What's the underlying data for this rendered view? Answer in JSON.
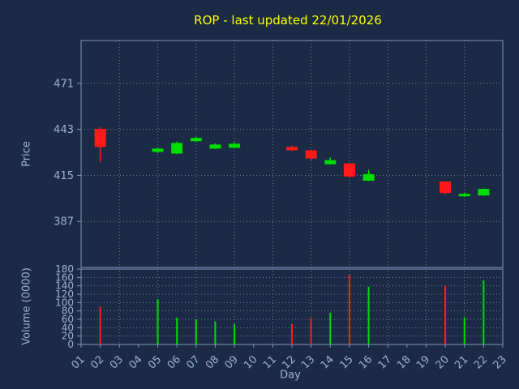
{
  "title": "ROP - last updated 22/01/2026",
  "colors": {
    "background": "#1b2b45",
    "title": "#ffff00",
    "axis_text": "#9fb1d4",
    "axis_line": "#8296bc",
    "grid": "#c0cbe0",
    "up": "#00dd00",
    "down": "#ff1a1a"
  },
  "chart_data": {
    "type": "candlestick_with_volume",
    "title": "ROP - last updated 22/01/2026",
    "xlabel": "Day",
    "price_ylabel": "Price",
    "volume_ylabel": "Volume (0000)",
    "grid": true,
    "x_ticks": [
      "01",
      "02",
      "03",
      "04",
      "05",
      "06",
      "07",
      "08",
      "09",
      "10",
      "11",
      "12",
      "13",
      "14",
      "15",
      "16",
      "17",
      "18",
      "19",
      "20",
      "21",
      "22",
      "23"
    ],
    "price_ticks": [
      387,
      415,
      443,
      471
    ],
    "price_ylim": [
      359,
      497
    ],
    "volume_ticks": [
      0,
      20,
      40,
      60,
      80,
      100,
      120,
      140,
      160,
      180
    ],
    "volume_ylim": [
      0,
      180
    ],
    "series": [
      {
        "day": "02",
        "open": 443.0,
        "high": 444.5,
        "low": 423.0,
        "close": 432.5,
        "volume": 90
      },
      {
        "day": "05",
        "open": 429.5,
        "high": 432.0,
        "low": 428.5,
        "close": 431.0,
        "volume": 108
      },
      {
        "day": "06",
        "open": 428.5,
        "high": 435.5,
        "low": 428.0,
        "close": 434.5,
        "volume": 64
      },
      {
        "day": "07",
        "open": 436.0,
        "high": 438.5,
        "low": 435.5,
        "close": 437.5,
        "volume": 60
      },
      {
        "day": "08",
        "open": 431.5,
        "high": 434.5,
        "low": 431.0,
        "close": 433.5,
        "volume": 55
      },
      {
        "day": "09",
        "open": 432.0,
        "high": 435.0,
        "low": 431.5,
        "close": 434.0,
        "volume": 49
      },
      {
        "day": "12",
        "open": 432.0,
        "high": 433.0,
        "low": 430.0,
        "close": 430.5,
        "volume": 49
      },
      {
        "day": "13",
        "open": 430.0,
        "high": 430.5,
        "low": 424.5,
        "close": 425.5,
        "volume": 64
      },
      {
        "day": "14",
        "open": 422.0,
        "high": 426.0,
        "low": 421.5,
        "close": 424.0,
        "volume": 76
      },
      {
        "day": "15",
        "open": 422.0,
        "high": 422.5,
        "low": 413.5,
        "close": 414.5,
        "volume": 167
      },
      {
        "day": "16",
        "open": 412.0,
        "high": 418.5,
        "low": 411.5,
        "close": 415.5,
        "volume": 138
      },
      {
        "day": "20",
        "open": 411.0,
        "high": 411.5,
        "low": 403.5,
        "close": 404.5,
        "volume": 140
      },
      {
        "day": "21",
        "open": 402.5,
        "high": 404.5,
        "low": 402.0,
        "close": 403.5,
        "volume": 64
      },
      {
        "day": "22",
        "open": 403.0,
        "high": 407.0,
        "low": 402.5,
        "close": 406.5,
        "volume": 153
      }
    ]
  }
}
